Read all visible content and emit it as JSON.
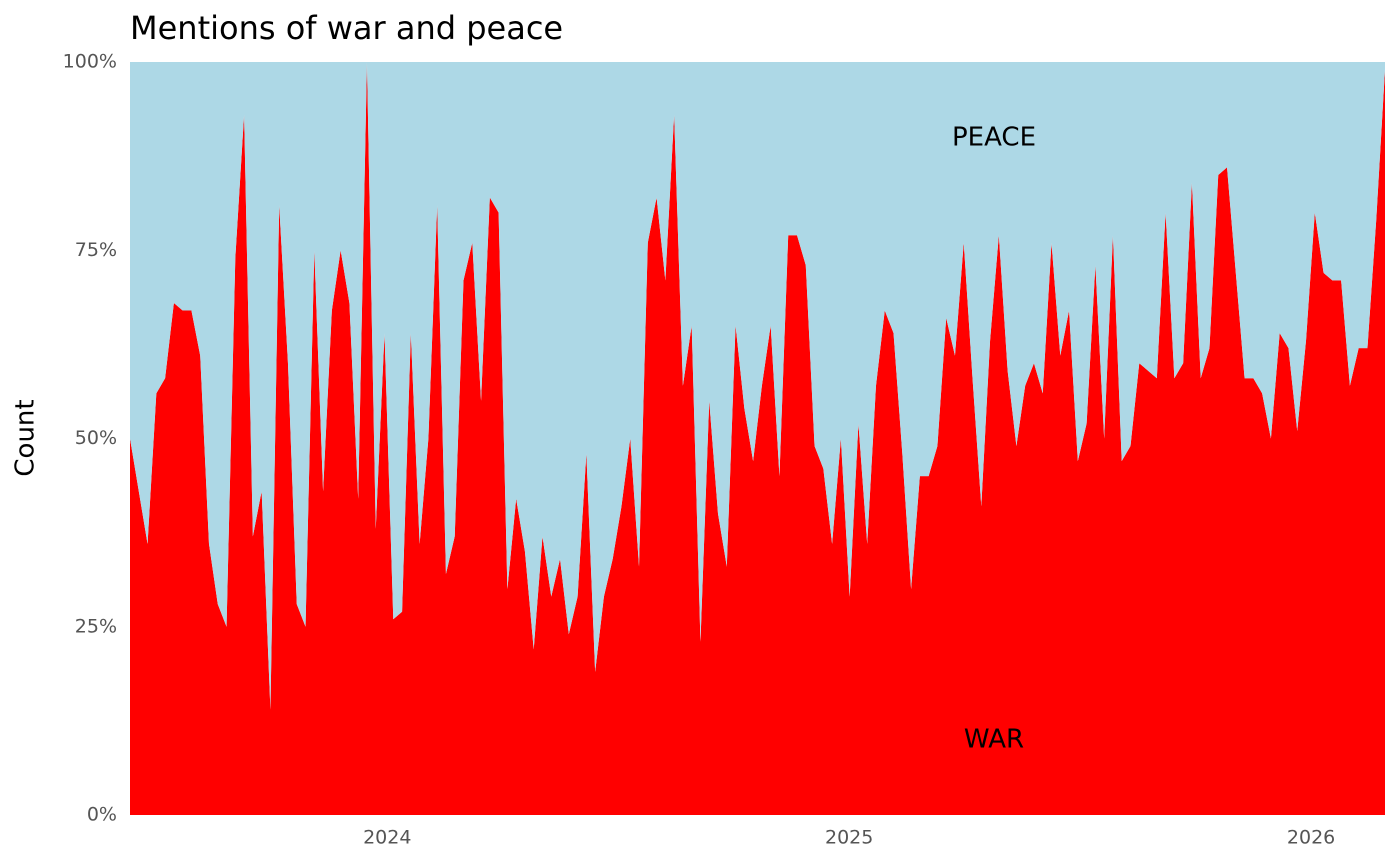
{
  "chart_data": {
    "type": "stacked_area",
    "title": "Mentions of war and peace",
    "ylabel": "Count",
    "x": [
      2023.443,
      2023.462,
      2023.481,
      2023.5,
      2023.519,
      2023.538,
      2023.557,
      2023.576,
      2023.595,
      2023.614,
      2023.633,
      2023.652,
      2023.671,
      2023.69,
      2023.709,
      2023.728,
      2023.747,
      2023.766,
      2023.785,
      2023.804,
      2023.823,
      2023.842,
      2023.861,
      2023.88,
      2023.899,
      2023.918,
      2023.937,
      2023.956,
      2023.975,
      2023.994,
      2024.013,
      2024.032,
      2024.051,
      2024.07,
      2024.089,
      2024.108,
      2024.127,
      2024.146,
      2024.165,
      2024.184,
      2024.203,
      2024.222,
      2024.241,
      2024.26,
      2024.279,
      2024.298,
      2024.317,
      2024.336,
      2024.355,
      2024.374,
      2024.393,
      2024.412,
      2024.431,
      2024.45,
      2024.469,
      2024.488,
      2024.507,
      2024.526,
      2024.545,
      2024.564,
      2024.583,
      2024.602,
      2024.621,
      2024.64,
      2024.659,
      2024.678,
      2024.697,
      2024.716,
      2024.735,
      2024.754,
      2024.773,
      2024.792,
      2024.811,
      2024.83,
      2024.849,
      2024.868,
      2024.887,
      2024.906,
      2024.925,
      2024.944,
      2024.963,
      2024.982,
      2025.001,
      2025.02,
      2025.039,
      2025.058,
      2025.077,
      2025.096,
      2025.115,
      2025.134,
      2025.153,
      2025.172,
      2025.191,
      2025.21,
      2025.229,
      2025.248,
      2025.267,
      2025.286,
      2025.305,
      2025.324,
      2025.343,
      2025.362,
      2025.381,
      2025.4,
      2025.419,
      2025.438,
      2025.457,
      2025.476,
      2025.495,
      2025.514,
      2025.533,
      2025.552,
      2025.571,
      2025.59,
      2025.609,
      2025.628,
      2025.647,
      2025.666,
      2025.685,
      2025.704,
      2025.723,
      2025.742,
      2025.761,
      2025.78,
      2025.799,
      2025.818,
      2025.837,
      2025.856,
      2025.875,
      2025.894,
      2025.913,
      2025.932,
      2025.951,
      2025.97,
      2025.989,
      2026.008,
      2026.027,
      2026.046,
      2026.065,
      2026.084,
      2026.103,
      2026.122,
      2026.141,
      2026.16
    ],
    "series": [
      {
        "name": "WAR",
        "color": "#ff0000",
        "values": [
          50,
          43,
          36,
          56,
          58,
          68,
          67,
          67,
          61,
          36,
          28,
          25,
          74,
          93,
          37,
          43,
          14,
          81,
          60,
          28,
          25,
          75,
          43,
          67,
          75,
          68,
          42,
          100,
          38,
          64,
          26,
          27,
          64,
          36,
          50,
          81,
          32,
          37,
          71,
          76,
          55,
          82,
          80,
          30,
          42,
          35,
          22,
          37,
          29,
          34,
          24,
          29,
          48,
          19,
          29,
          34,
          41,
          50,
          33,
          76,
          82,
          71,
          93,
          57,
          65,
          23,
          55,
          40,
          33,
          65,
          54,
          47,
          57,
          65,
          45,
          77,
          77,
          73,
          49,
          46,
          36,
          50,
          29,
          52,
          36,
          57,
          67,
          64,
          48,
          30,
          45,
          45,
          49,
          66,
          61,
          76,
          58,
          41,
          63,
          77,
          59,
          49,
          57,
          60,
          56,
          76,
          61,
          67,
          47,
          52,
          73,
          50,
          77,
          47,
          49,
          60,
          59,
          58,
          80,
          58,
          60,
          84,
          58,
          62,
          85,
          86,
          72,
          58,
          58,
          56,
          50,
          64,
          62,
          51,
          63,
          80,
          72,
          71,
          71,
          57,
          62,
          62,
          79,
          99
        ]
      },
      {
        "name": "PEACE",
        "color": "#add8e6",
        "values": [
          50,
          57,
          64,
          44,
          42,
          32,
          33,
          33,
          39,
          64,
          72,
          75,
          26,
          7,
          63,
          57,
          86,
          19,
          40,
          72,
          75,
          25,
          57,
          33,
          25,
          32,
          58,
          0,
          62,
          36,
          74,
          73,
          36,
          64,
          50,
          19,
          68,
          63,
          29,
          24,
          45,
          18,
          20,
          70,
          58,
          65,
          78,
          63,
          71,
          66,
          76,
          71,
          52,
          81,
          71,
          66,
          59,
          50,
          67,
          24,
          18,
          29,
          7,
          43,
          35,
          77,
          45,
          60,
          67,
          35,
          46,
          53,
          43,
          35,
          55,
          23,
          23,
          27,
          51,
          54,
          64,
          50,
          71,
          48,
          64,
          43,
          33,
          36,
          52,
          70,
          55,
          55,
          51,
          34,
          39,
          24,
          42,
          59,
          37,
          23,
          41,
          51,
          43,
          40,
          44,
          24,
          39,
          33,
          53,
          48,
          27,
          50,
          23,
          53,
          51,
          40,
          41,
          42,
          20,
          42,
          40,
          16,
          42,
          38,
          15,
          14,
          28,
          42,
          42,
          44,
          50,
          36,
          38,
          49,
          37,
          20,
          28,
          29,
          29,
          43,
          38,
          38,
          21,
          1
        ]
      }
    ],
    "xlim": [
      2023.443,
      2026.16
    ],
    "xticks": [
      2024,
      2025,
      2026
    ],
    "ylim": [
      0,
      100
    ],
    "yticks": [
      {
        "value": 0,
        "label": "0%"
      },
      {
        "value": 25,
        "label": "25%"
      },
      {
        "value": 50,
        "label": "50%"
      },
      {
        "value": 75,
        "label": "75%"
      },
      {
        "value": 100,
        "label": "100%"
      }
    ]
  }
}
